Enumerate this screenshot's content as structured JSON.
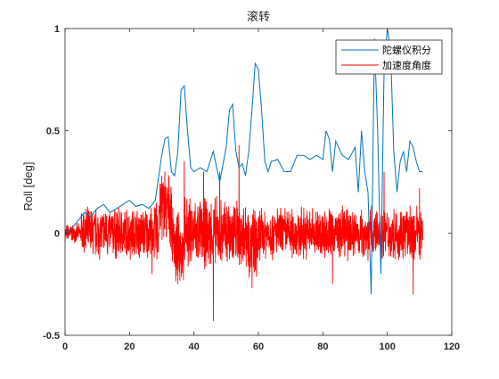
{
  "chart_data": {
    "type": "line",
    "title": "滚转",
    "xlabel": "",
    "ylabel": "Roll [deg]",
    "xlim": [
      0,
      120
    ],
    "ylim": [
      -0.5,
      1
    ],
    "xticks": [
      "0",
      "20",
      "40",
      "60",
      "80",
      "100",
      "120"
    ],
    "yticks": [
      "-0.5",
      "0",
      "0.5",
      "1"
    ],
    "grid": false,
    "legend_position": "top-right",
    "series": [
      {
        "name": "陀螺仪积分",
        "color": "#0072BD",
        "x": [
          0,
          2,
          4,
          6,
          8,
          10,
          12,
          14,
          16,
          18,
          20,
          22,
          24,
          26,
          28,
          30,
          31,
          32,
          33,
          34,
          35,
          36,
          37,
          38,
          39,
          40,
          42,
          44,
          46,
          48,
          50,
          51,
          52,
          53,
          54,
          55,
          56,
          57,
          58,
          59,
          60,
          61,
          62,
          63,
          64,
          66,
          68,
          70,
          72,
          74,
          76,
          78,
          80,
          81,
          82,
          83,
          84,
          86,
          88,
          90,
          91,
          92,
          93,
          94,
          95,
          96,
          97,
          98,
          99,
          100,
          101,
          102,
          103,
          104,
          105,
          106,
          107,
          108,
          109,
          110,
          111
        ],
        "y": [
          0.0,
          0.02,
          0.06,
          0.1,
          0.08,
          0.12,
          0.14,
          0.1,
          0.12,
          0.14,
          0.16,
          0.13,
          0.14,
          0.12,
          0.16,
          0.38,
          0.46,
          0.47,
          0.3,
          0.28,
          0.4,
          0.7,
          0.72,
          0.5,
          0.32,
          0.3,
          0.32,
          0.3,
          0.4,
          0.25,
          0.42,
          0.6,
          0.63,
          0.4,
          0.32,
          0.34,
          0.28,
          0.4,
          0.6,
          0.83,
          0.8,
          0.6,
          0.35,
          0.3,
          0.35,
          0.36,
          0.3,
          0.3,
          0.38,
          0.38,
          0.36,
          0.38,
          0.36,
          0.5,
          0.46,
          0.3,
          0.45,
          0.38,
          0.36,
          0.42,
          0.2,
          0.5,
          0.3,
          0.2,
          -0.3,
          0.95,
          0.5,
          -0.2,
          0.8,
          1.0,
          0.9,
          0.4,
          0.2,
          0.35,
          0.4,
          0.3,
          0.45,
          0.42,
          0.35,
          0.3,
          0.3
        ]
      },
      {
        "name": "加速度角度",
        "color": "#FF0000",
        "x_start": 0,
        "x_end": 111,
        "noise_amplitude": 0.12,
        "spikes": [
          {
            "x": 27,
            "y": -0.2
          },
          {
            "x": 30,
            "y": 0.28
          },
          {
            "x": 31,
            "y": 0.3
          },
          {
            "x": 35,
            "y": -0.25
          },
          {
            "x": 37,
            "y": 0.35
          },
          {
            "x": 43,
            "y": 0.3
          },
          {
            "x": 46,
            "y": -0.43
          },
          {
            "x": 48,
            "y": 0.3
          },
          {
            "x": 54,
            "y": 0.43
          },
          {
            "x": 58,
            "y": -0.27
          },
          {
            "x": 83,
            "y": -0.25
          },
          {
            "x": 99,
            "y": 0.3
          },
          {
            "x": 108,
            "y": -0.3
          },
          {
            "x": 110,
            "y": 0.22
          }
        ]
      }
    ]
  }
}
